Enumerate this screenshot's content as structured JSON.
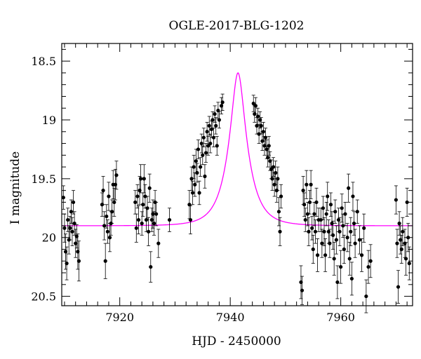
{
  "chart_data": {
    "type": "scatter",
    "title": "OGLE-2017-BLG-1202",
    "xlabel": "HJD - 2450000",
    "ylabel": "I magnitude",
    "xlim": [
      7909.5,
      7973
    ],
    "ylim": [
      20.58,
      18.35
    ],
    "y_inverted": true,
    "xticks": [
      7920,
      7940,
      7960
    ],
    "yticks": [
      18.5,
      19,
      19.5,
      20,
      20.5
    ],
    "ytick_labels": [
      "18.5",
      "19",
      "19.5",
      "20",
      "20.5"
    ],
    "grid": false,
    "colors": {
      "points": "#000000",
      "model": "#ff00ff"
    },
    "model": {
      "name": "",
      "t0": 7941.4,
      "peak_mag": 18.6,
      "baseline_mag": 19.9,
      "tE": 3.4
    },
    "series": [
      {
        "name": "",
        "points": [
          {
            "x": 7909.8,
            "y": 19.66,
            "err": 0.1
          },
          {
            "x": 7910.0,
            "y": 19.92,
            "err": 0.12
          },
          {
            "x": 7910.2,
            "y": 20.12,
            "err": 0.15
          },
          {
            "x": 7910.4,
            "y": 20.22,
            "err": 0.14
          },
          {
            "x": 7910.6,
            "y": 19.85,
            "err": 0.1
          },
          {
            "x": 7910.8,
            "y": 20.02,
            "err": 0.12
          },
          {
            "x": 7911.0,
            "y": 19.92,
            "err": 0.1
          },
          {
            "x": 7911.2,
            "y": 19.78,
            "err": 0.1
          },
          {
            "x": 7911.4,
            "y": 19.95,
            "err": 0.12
          },
          {
            "x": 7911.6,
            "y": 19.7,
            "err": 0.1
          },
          {
            "x": 7911.8,
            "y": 19.88,
            "err": 0.1
          },
          {
            "x": 7912.0,
            "y": 20.05,
            "err": 0.12
          },
          {
            "x": 7912.2,
            "y": 19.99,
            "err": 0.1
          },
          {
            "x": 7912.4,
            "y": 20.12,
            "err": 0.15
          },
          {
            "x": 7912.6,
            "y": 20.2,
            "err": 0.17
          },
          {
            "x": 7916.8,
            "y": 19.72,
            "err": 0.1
          },
          {
            "x": 7917.0,
            "y": 19.6,
            "err": 0.12
          },
          {
            "x": 7917.2,
            "y": 19.9,
            "err": 0.12
          },
          {
            "x": 7917.4,
            "y": 20.2,
            "err": 0.15
          },
          {
            "x": 7917.6,
            "y": 19.82,
            "err": 0.1
          },
          {
            "x": 7917.8,
            "y": 19.95,
            "err": 0.1
          },
          {
            "x": 7918.0,
            "y": 19.65,
            "err": 0.12
          },
          {
            "x": 7918.2,
            "y": 20.0,
            "err": 0.12
          },
          {
            "x": 7918.4,
            "y": 19.88,
            "err": 0.1
          },
          {
            "x": 7918.6,
            "y": 19.78,
            "err": 0.1
          },
          {
            "x": 7918.8,
            "y": 19.55,
            "err": 0.12
          },
          {
            "x": 7919.0,
            "y": 19.7,
            "err": 0.12
          },
          {
            "x": 7919.2,
            "y": 19.55,
            "err": 0.13
          },
          {
            "x": 7919.4,
            "y": 19.47,
            "err": 0.12
          },
          {
            "x": 7922.8,
            "y": 19.7,
            "err": 0.1
          },
          {
            "x": 7923.0,
            "y": 19.92,
            "err": 0.12
          },
          {
            "x": 7923.2,
            "y": 19.65,
            "err": 0.1
          },
          {
            "x": 7923.4,
            "y": 19.85,
            "err": 0.12
          },
          {
            "x": 7923.6,
            "y": 19.6,
            "err": 0.12
          },
          {
            "x": 7923.8,
            "y": 19.5,
            "err": 0.12
          },
          {
            "x": 7924.0,
            "y": 19.88,
            "err": 0.1
          },
          {
            "x": 7924.2,
            "y": 19.72,
            "err": 0.1
          },
          {
            "x": 7924.4,
            "y": 19.5,
            "err": 0.12
          },
          {
            "x": 7924.6,
            "y": 19.65,
            "err": 0.1
          },
          {
            "x": 7924.8,
            "y": 19.85,
            "err": 0.1
          },
          {
            "x": 7925.0,
            "y": 19.75,
            "err": 0.1
          },
          {
            "x": 7925.2,
            "y": 19.95,
            "err": 0.12
          },
          {
            "x": 7925.4,
            "y": 19.58,
            "err": 0.12
          },
          {
            "x": 7925.6,
            "y": 20.25,
            "err": 0.13
          },
          {
            "x": 7925.8,
            "y": 19.85,
            "err": 0.1
          },
          {
            "x": 7926.0,
            "y": 19.8,
            "err": 0.12
          },
          {
            "x": 7926.2,
            "y": 19.88,
            "err": 0.1
          },
          {
            "x": 7926.4,
            "y": 19.7,
            "err": 0.1
          },
          {
            "x": 7926.6,
            "y": 19.8,
            "err": 0.1
          },
          {
            "x": 7927.0,
            "y": 20.05,
            "err": 0.12
          },
          {
            "x": 7929.0,
            "y": 19.85,
            "err": 0.1
          },
          {
            "x": 7932.6,
            "y": 19.72,
            "err": 0.12
          },
          {
            "x": 7932.8,
            "y": 19.85,
            "err": 0.12
          },
          {
            "x": 7933.0,
            "y": 19.5,
            "err": 0.1
          },
          {
            "x": 7933.2,
            "y": 19.62,
            "err": 0.1
          },
          {
            "x": 7933.4,
            "y": 19.4,
            "err": 0.1
          },
          {
            "x": 7933.6,
            "y": 19.55,
            "err": 0.1
          },
          {
            "x": 7933.8,
            "y": 19.35,
            "err": 0.1
          },
          {
            "x": 7934.0,
            "y": 19.45,
            "err": 0.08
          },
          {
            "x": 7934.2,
            "y": 19.25,
            "err": 0.08
          },
          {
            "x": 7934.4,
            "y": 19.62,
            "err": 0.1
          },
          {
            "x": 7934.6,
            "y": 19.4,
            "err": 0.08
          },
          {
            "x": 7934.8,
            "y": 19.2,
            "err": 0.08
          },
          {
            "x": 7935.0,
            "y": 19.3,
            "err": 0.08
          },
          {
            "x": 7935.2,
            "y": 19.15,
            "err": 0.08
          },
          {
            "x": 7935.4,
            "y": 19.48,
            "err": 0.1
          },
          {
            "x": 7935.6,
            "y": 19.28,
            "err": 0.08
          },
          {
            "x": 7935.8,
            "y": 19.1,
            "err": 0.08
          },
          {
            "x": 7936.0,
            "y": 19.22,
            "err": 0.08
          },
          {
            "x": 7936.2,
            "y": 19.05,
            "err": 0.08
          },
          {
            "x": 7936.4,
            "y": 19.2,
            "err": 0.08
          },
          {
            "x": 7936.6,
            "y": 19.08,
            "err": 0.07
          },
          {
            "x": 7936.8,
            "y": 19.0,
            "err": 0.07
          },
          {
            "x": 7937.0,
            "y": 19.15,
            "err": 0.08
          },
          {
            "x": 7937.2,
            "y": 18.95,
            "err": 0.07
          },
          {
            "x": 7937.4,
            "y": 19.05,
            "err": 0.07
          },
          {
            "x": 7937.6,
            "y": 19.22,
            "err": 0.08
          },
          {
            "x": 7937.8,
            "y": 18.92,
            "err": 0.07
          },
          {
            "x": 7938.0,
            "y": 19.0,
            "err": 0.07
          },
          {
            "x": 7938.4,
            "y": 18.88,
            "err": 0.07
          },
          {
            "x": 7938.6,
            "y": 18.85,
            "err": 0.07
          },
          {
            "x": 7944.2,
            "y": 18.86,
            "err": 0.07
          },
          {
            "x": 7944.4,
            "y": 18.95,
            "err": 0.07
          },
          {
            "x": 7944.6,
            "y": 18.88,
            "err": 0.07
          },
          {
            "x": 7944.8,
            "y": 19.05,
            "err": 0.07
          },
          {
            "x": 7945.0,
            "y": 18.97,
            "err": 0.07
          },
          {
            "x": 7945.2,
            "y": 19.12,
            "err": 0.08
          },
          {
            "x": 7945.4,
            "y": 19.0,
            "err": 0.07
          },
          {
            "x": 7945.6,
            "y": 19.05,
            "err": 0.07
          },
          {
            "x": 7945.8,
            "y": 19.18,
            "err": 0.08
          },
          {
            "x": 7946.0,
            "y": 19.1,
            "err": 0.08
          },
          {
            "x": 7946.2,
            "y": 19.22,
            "err": 0.08
          },
          {
            "x": 7946.4,
            "y": 19.15,
            "err": 0.08
          },
          {
            "x": 7946.6,
            "y": 19.25,
            "err": 0.08
          },
          {
            "x": 7946.8,
            "y": 19.32,
            "err": 0.08
          },
          {
            "x": 7947.0,
            "y": 19.22,
            "err": 0.08
          },
          {
            "x": 7947.2,
            "y": 19.35,
            "err": 0.08
          },
          {
            "x": 7947.4,
            "y": 19.42,
            "err": 0.08
          },
          {
            "x": 7947.6,
            "y": 19.5,
            "err": 0.1
          },
          {
            "x": 7947.8,
            "y": 19.4,
            "err": 0.08
          },
          {
            "x": 7948.0,
            "y": 19.55,
            "err": 0.1
          },
          {
            "x": 7948.2,
            "y": 19.45,
            "err": 0.1
          },
          {
            "x": 7948.4,
            "y": 19.6,
            "err": 0.1
          },
          {
            "x": 7948.6,
            "y": 19.5,
            "err": 0.1
          },
          {
            "x": 7948.8,
            "y": 19.78,
            "err": 0.12
          },
          {
            "x": 7949.0,
            "y": 19.95,
            "err": 0.12
          },
          {
            "x": 7949.2,
            "y": 19.65,
            "err": 0.1
          },
          {
            "x": 7952.8,
            "y": 20.38,
            "err": 0.14
          },
          {
            "x": 7953.0,
            "y": 20.45,
            "err": 0.12
          },
          {
            "x": 7953.2,
            "y": 19.6,
            "err": 0.12
          },
          {
            "x": 7953.4,
            "y": 19.72,
            "err": 0.1
          },
          {
            "x": 7953.6,
            "y": 19.85,
            "err": 0.1
          },
          {
            "x": 7953.8,
            "y": 19.55,
            "err": 0.12
          },
          {
            "x": 7954.0,
            "y": 19.8,
            "err": 0.1
          },
          {
            "x": 7954.2,
            "y": 19.95,
            "err": 0.12
          },
          {
            "x": 7954.4,
            "y": 19.7,
            "err": 0.1
          },
          {
            "x": 7954.6,
            "y": 19.55,
            "err": 0.12
          },
          {
            "x": 7954.8,
            "y": 19.92,
            "err": 0.1
          },
          {
            "x": 7955.0,
            "y": 20.1,
            "err": 0.12
          },
          {
            "x": 7955.2,
            "y": 19.8,
            "err": 0.1
          },
          {
            "x": 7955.4,
            "y": 19.95,
            "err": 0.1
          },
          {
            "x": 7955.6,
            "y": 19.7,
            "err": 0.12
          },
          {
            "x": 7955.8,
            "y": 20.15,
            "err": 0.14
          },
          {
            "x": 7956.0,
            "y": 19.85,
            "err": 0.1
          },
          {
            "x": 7956.4,
            "y": 19.85,
            "err": 0.1
          },
          {
            "x": 7956.6,
            "y": 20.05,
            "err": 0.12
          },
          {
            "x": 7956.8,
            "y": 19.75,
            "err": 0.1
          },
          {
            "x": 7957.0,
            "y": 19.95,
            "err": 0.12
          },
          {
            "x": 7957.2,
            "y": 20.15,
            "err": 0.14
          },
          {
            "x": 7957.4,
            "y": 19.8,
            "err": 0.1
          },
          {
            "x": 7957.6,
            "y": 19.65,
            "err": 0.12
          },
          {
            "x": 7957.8,
            "y": 19.95,
            "err": 0.1
          },
          {
            "x": 7958.0,
            "y": 20.05,
            "err": 0.12
          },
          {
            "x": 7958.2,
            "y": 19.72,
            "err": 0.1
          },
          {
            "x": 7958.4,
            "y": 19.88,
            "err": 0.1
          },
          {
            "x": 7958.6,
            "y": 19.98,
            "err": 0.12
          },
          {
            "x": 7958.8,
            "y": 20.18,
            "err": 0.14
          },
          {
            "x": 7959.0,
            "y": 19.78,
            "err": 0.1
          },
          {
            "x": 7959.2,
            "y": 20.02,
            "err": 0.12
          },
          {
            "x": 7959.4,
            "y": 20.38,
            "err": 0.14
          },
          {
            "x": 7959.6,
            "y": 19.85,
            "err": 0.1
          },
          {
            "x": 7959.8,
            "y": 19.95,
            "err": 0.12
          },
          {
            "x": 7960.0,
            "y": 20.25,
            "err": 0.14
          },
          {
            "x": 7960.2,
            "y": 19.75,
            "err": 0.12
          },
          {
            "x": 7960.4,
            "y": 19.9,
            "err": 0.1
          },
          {
            "x": 7960.6,
            "y": 20.1,
            "err": 0.12
          },
          {
            "x": 7960.8,
            "y": 19.8,
            "err": 0.1
          },
          {
            "x": 7961.2,
            "y": 20.0,
            "err": 0.12
          },
          {
            "x": 7961.4,
            "y": 19.58,
            "err": 0.12
          },
          {
            "x": 7961.6,
            "y": 20.18,
            "err": 0.14
          },
          {
            "x": 7961.8,
            "y": 19.95,
            "err": 0.12
          },
          {
            "x": 7962.0,
            "y": 20.35,
            "err": 0.14
          },
          {
            "x": 7962.2,
            "y": 19.65,
            "err": 0.12
          },
          {
            "x": 7962.4,
            "y": 19.88,
            "err": 0.1
          },
          {
            "x": 7962.6,
            "y": 20.05,
            "err": 0.12
          },
          {
            "x": 7963.0,
            "y": 19.78,
            "err": 0.1
          },
          {
            "x": 7963.4,
            "y": 20.02,
            "err": 0.12
          },
          {
            "x": 7963.8,
            "y": 20.15,
            "err": 0.14
          },
          {
            "x": 7964.2,
            "y": 19.92,
            "err": 0.12
          },
          {
            "x": 7964.6,
            "y": 20.5,
            "err": 0.14
          },
          {
            "x": 7965.0,
            "y": 20.25,
            "err": 0.14
          },
          {
            "x": 7965.4,
            "y": 20.2,
            "err": 0.14
          },
          {
            "x": 7970.0,
            "y": 19.68,
            "err": 0.12
          },
          {
            "x": 7970.2,
            "y": 20.05,
            "err": 0.12
          },
          {
            "x": 7970.4,
            "y": 20.42,
            "err": 0.14
          },
          {
            "x": 7970.6,
            "y": 19.88,
            "err": 0.1
          },
          {
            "x": 7970.8,
            "y": 20.02,
            "err": 0.12
          },
          {
            "x": 7971.0,
            "y": 20.1,
            "err": 0.12
          },
          {
            "x": 7971.2,
            "y": 19.95,
            "err": 0.12
          },
          {
            "x": 7971.6,
            "y": 20.05,
            "err": 0.12
          },
          {
            "x": 7971.8,
            "y": 20.18,
            "err": 0.14
          },
          {
            "x": 7972.0,
            "y": 19.7,
            "err": 0.12
          },
          {
            "x": 7972.2,
            "y": 20.0,
            "err": 0.12
          },
          {
            "x": 7972.4,
            "y": 20.22,
            "err": 0.14
          }
        ]
      }
    ]
  }
}
